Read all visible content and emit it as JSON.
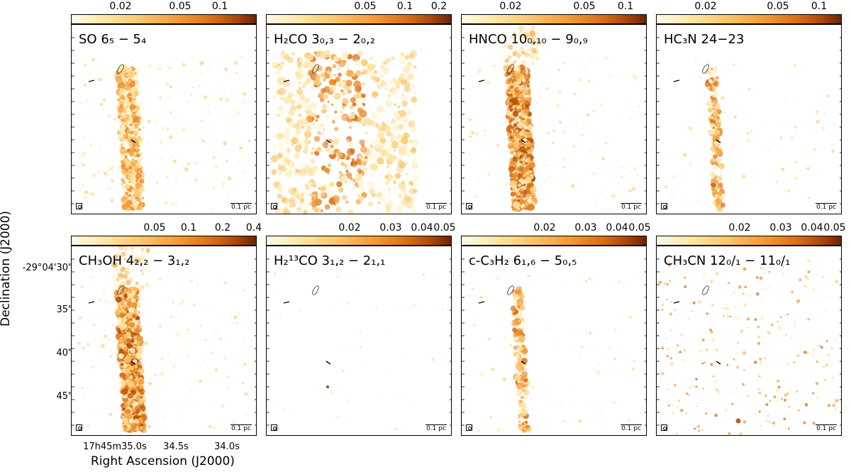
{
  "axes": {
    "ylabel": "Declination (J2000)",
    "xlabel": "Right Ascension (J2000)",
    "dec_ticks": [
      "-29°04'30\"",
      "35\"",
      "40\"",
      "45\""
    ],
    "ra_ticks": [
      "17h45m35.0s",
      "34.5s",
      "34.0s"
    ]
  },
  "scalebar_label": "0.1 pc",
  "panels": [
    {
      "id": "so",
      "label": "SO 6₅ − 5₄",
      "cbar_ticks": [
        "0.02",
        "0.05",
        "0.1"
      ],
      "emission": "filament-medium"
    },
    {
      "id": "h2co",
      "label": "H₂CO 3₀,₃ − 2₀,₂",
      "cbar_ticks": [
        "0.05",
        "0.1",
        "0.2"
      ],
      "emission": "widespread"
    },
    {
      "id": "hnco",
      "label": "HNCO 10₀,₁₀ − 9₀,₉",
      "cbar_ticks": [
        "0.02",
        "0.05",
        "0.1"
      ],
      "emission": "filament-strong"
    },
    {
      "id": "hc3n",
      "label": "HC₃N 24−23",
      "cbar_ticks": [
        "0.02",
        "0.05",
        "0.1"
      ],
      "emission": "filament-weak"
    },
    {
      "id": "ch3oh",
      "label": "CH₃OH 4₂,₂ − 3₁,₂",
      "cbar_ticks": [
        "0.05",
        "0.1",
        "0.2",
        "0.4"
      ],
      "emission": "filament-strong"
    },
    {
      "id": "h213co",
      "label": "H₂¹³CO 3₁,₂ − 2₁,₁",
      "cbar_ticks": [
        "0.02",
        "0.03",
        "0.04",
        "0.05"
      ],
      "emission": "sparse"
    },
    {
      "id": "cc3h2",
      "label": "c-C₃H₂ 6₁,₆ − 5₀,₅",
      "cbar_ticks": [
        "0.02",
        "0.03",
        "0.04",
        "0.05"
      ],
      "emission": "filament-weak"
    },
    {
      "id": "ch3cn",
      "label": "CH₃CN 12₀/₁ − 11₀/₁",
      "cbar_ticks": [
        "0.02",
        "0.03",
        "0.04",
        "0.05"
      ],
      "emission": "speckle"
    }
  ],
  "colors": {
    "cmap_low": "#fffbe8",
    "cmap_mid": "#f59a35",
    "cmap_high": "#6a2405"
  }
}
